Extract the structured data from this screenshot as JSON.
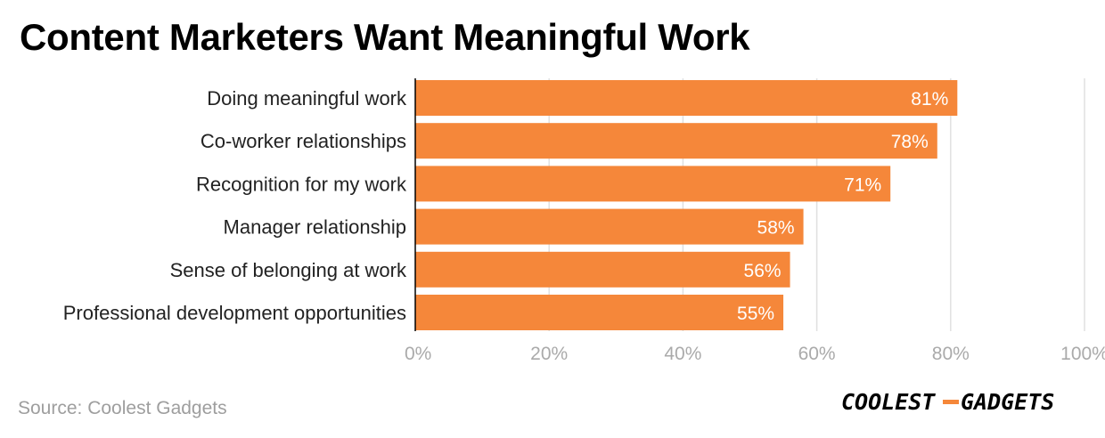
{
  "title": "Content Marketers Want Meaningful Work",
  "source": "Source: Coolest Gadgets",
  "logo": {
    "text_left": "COOLEST",
    "text_right": "GADGETS",
    "accent_color": "#f5873a"
  },
  "colors": {
    "bar": "#f5873a",
    "grid": "#e0e0e0",
    "axis": "#000000",
    "tick_label": "#aaaaaa",
    "category_label": "#222222",
    "value_label": "#ffffff"
  },
  "chart_data": {
    "type": "bar",
    "orientation": "horizontal",
    "categories": [
      "Doing meaningful work",
      "Co-worker relationships",
      "Recognition for my work",
      "Manager relationship",
      "Sense of belonging at work",
      "Professional development opportunities"
    ],
    "values": [
      81,
      78,
      71,
      58,
      56,
      55
    ],
    "value_labels": [
      "81%",
      "78%",
      "71%",
      "58%",
      "56%",
      "55%"
    ],
    "xlim": [
      0,
      100
    ],
    "xticks": [
      0,
      20,
      40,
      60,
      80,
      100
    ],
    "xtick_labels": [
      "0%",
      "20%",
      "40%",
      "60%",
      "80%",
      "100%"
    ],
    "grid": true
  }
}
